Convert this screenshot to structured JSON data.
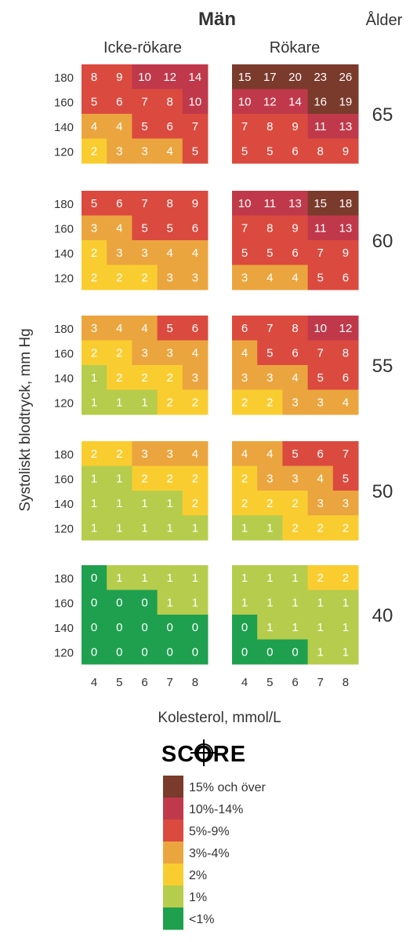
{
  "chart_data": {
    "type": "heatmap",
    "title": "Män",
    "age_header": "Ålder",
    "panel_titles": [
      "Icke-rökare",
      "Rökare"
    ],
    "ylabel": "Systoliskt blodtryck, mm Hg",
    "xlabel": "Kolesterol, mmol/L",
    "x_ticks": [
      "4",
      "5",
      "6",
      "7",
      "8"
    ],
    "y_ticks": [
      "180",
      "160",
      "140",
      "120"
    ],
    "ages": [
      "65",
      "60",
      "55",
      "50",
      "40"
    ],
    "values": [
      {
        "nonsmoker": [
          [
            8,
            9,
            10,
            12,
            14
          ],
          [
            5,
            6,
            7,
            8,
            10
          ],
          [
            4,
            4,
            5,
            6,
            7
          ],
          [
            2,
            3,
            3,
            4,
            5
          ]
        ],
        "smoker": [
          [
            15,
            17,
            20,
            23,
            26
          ],
          [
            10,
            12,
            14,
            16,
            19
          ],
          [
            7,
            8,
            9,
            11,
            13
          ],
          [
            5,
            5,
            6,
            8,
            9
          ]
        ]
      },
      {
        "nonsmoker": [
          [
            5,
            6,
            7,
            8,
            9
          ],
          [
            3,
            4,
            5,
            5,
            6
          ],
          [
            2,
            3,
            3,
            4,
            4
          ],
          [
            2,
            2,
            2,
            3,
            3
          ]
        ],
        "smoker": [
          [
            10,
            11,
            13,
            15,
            18
          ],
          [
            7,
            8,
            9,
            11,
            13
          ],
          [
            5,
            5,
            6,
            7,
            9
          ],
          [
            3,
            4,
            4,
            5,
            6
          ]
        ]
      },
      {
        "nonsmoker": [
          [
            3,
            4,
            4,
            5,
            6
          ],
          [
            2,
            2,
            3,
            3,
            4
          ],
          [
            1,
            2,
            2,
            2,
            3
          ],
          [
            1,
            1,
            1,
            2,
            2
          ]
        ],
        "smoker": [
          [
            6,
            7,
            8,
            10,
            12
          ],
          [
            4,
            5,
            6,
            7,
            8
          ],
          [
            3,
            3,
            4,
            5,
            6
          ],
          [
            2,
            2,
            3,
            3,
            4
          ]
        ]
      },
      {
        "nonsmoker": [
          [
            2,
            2,
            3,
            3,
            4
          ],
          [
            1,
            1,
            2,
            2,
            2
          ],
          [
            1,
            1,
            1,
            1,
            2
          ],
          [
            1,
            1,
            1,
            1,
            1
          ]
        ],
        "smoker": [
          [
            4,
            4,
            5,
            6,
            7
          ],
          [
            2,
            3,
            3,
            4,
            5
          ],
          [
            2,
            2,
            2,
            3,
            3
          ],
          [
            1,
            1,
            2,
            2,
            2
          ]
        ]
      },
      {
        "nonsmoker": [
          [
            0,
            1,
            1,
            1,
            1
          ],
          [
            0,
            0,
            0,
            1,
            1
          ],
          [
            0,
            0,
            0,
            0,
            0
          ],
          [
            0,
            0,
            0,
            0,
            0
          ]
        ],
        "smoker": [
          [
            1,
            1,
            1,
            2,
            2
          ],
          [
            1,
            1,
            1,
            1,
            1
          ],
          [
            0,
            1,
            1,
            1,
            1
          ],
          [
            0,
            0,
            0,
            1,
            1
          ]
        ]
      }
    ],
    "logo_text": "SCORE",
    "legend": [
      {
        "label": "15% och över",
        "color": "#7a3a2c"
      },
      {
        "label": "10%-14%",
        "color": "#c0394b"
      },
      {
        "label": "5%-9%",
        "color": "#db4a3f"
      },
      {
        "label": "3%-4%",
        "color": "#eba53f"
      },
      {
        "label": "2%",
        "color": "#f9cd30"
      },
      {
        "label": "1%",
        "color": "#b6cc4c"
      },
      {
        "label": "<1%",
        "color": "#1ea04f"
      }
    ]
  }
}
